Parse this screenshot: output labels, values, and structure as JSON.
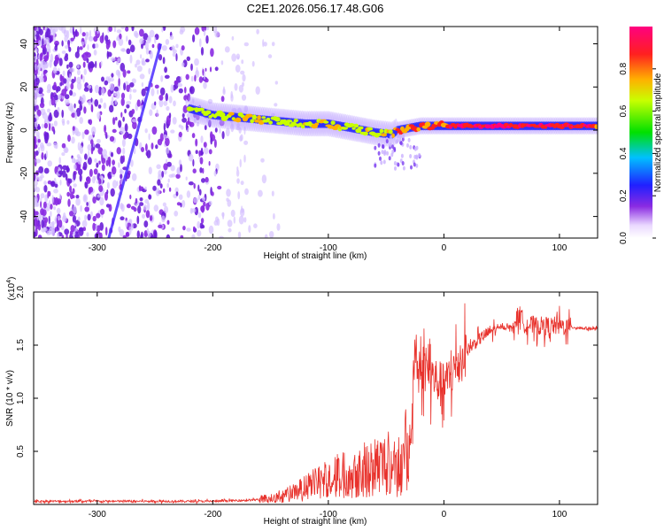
{
  "chart_data": [
    {
      "type": "heatmap",
      "title": "C2E1.2026.056.17.48.G06",
      "xlabel": "Height of straight line (km)",
      "ylabel": "Frequency (Hz)",
      "xlim": [
        -355,
        133
      ],
      "ylim": [
        -50,
        48
      ],
      "xticks": [
        -300,
        -200,
        -100,
        0,
        100
      ],
      "xtick_labels": [
        "-300",
        "-200",
        "-100",
        "0",
        "100"
      ],
      "yticks": [
        -40,
        -20,
        0,
        20,
        40
      ],
      "ytick_labels": [
        "-40",
        "-20",
        "0",
        "20",
        "40"
      ],
      "colorbar": {
        "label": "Normalized spectral amplitude",
        "range": [
          0,
          1
        ],
        "ticks": [
          0.0,
          0.2,
          0.4,
          0.6,
          0.8
        ],
        "tick_labels": [
          "0.0",
          "0.2",
          "0.4",
          "0.6",
          "0.8"
        ]
      },
      "ridge": {
        "x": [
          -220,
          -200,
          -180,
          -160,
          -140,
          -120,
          -100,
          -80,
          -60,
          -45,
          -40,
          -30,
          -20,
          -10,
          0,
          20,
          40,
          60,
          80,
          100,
          120,
          133
        ],
        "y": [
          10,
          7,
          6,
          5,
          4,
          3,
          3,
          1,
          -1,
          -2,
          0,
          1,
          2,
          2,
          2,
          2,
          2,
          2,
          2,
          2,
          2,
          2
        ],
        "amplitude": [
          0.6,
          0.6,
          0.7,
          0.7,
          0.6,
          0.65,
          0.7,
          0.6,
          0.65,
          0.7,
          0.85,
          0.8,
          0.75,
          0.8,
          0.85,
          0.9,
          0.95,
          0.9,
          0.9,
          0.9,
          0.9,
          0.85
        ]
      },
      "streak": {
        "x": [
          -290,
          -245
        ],
        "y": [
          -50,
          40
        ]
      }
    },
    {
      "type": "line",
      "title": "",
      "xlabel": "Height of straight line (km)",
      "ylabel": "SNR (10 * v/v)",
      "scale_label": "(x10",
      "scale_exponent": "4",
      "xlim": [
        -355,
        133
      ],
      "ylim": [
        0,
        2.0
      ],
      "xticks": [
        -300,
        -200,
        -100,
        0,
        100
      ],
      "xtick_labels": [
        "-300",
        "-200",
        "-100",
        "0",
        "100"
      ],
      "yticks": [
        0.5,
        1.0,
        1.5,
        2.0
      ],
      "ytick_labels": [
        "0.5",
        "1.0",
        "1.5",
        "2.0"
      ],
      "series": [
        {
          "name": "SNR",
          "color": "#e8322c",
          "x": [
            -355,
            -300,
            -250,
            -200,
            -170,
            -150,
            -130,
            -110,
            -90,
            -70,
            -50,
            -35,
            -28,
            -25,
            -22,
            -18,
            -10,
            0,
            10,
            20,
            30,
            40,
            50,
            60,
            65,
            70,
            80,
            90,
            100,
            110,
            120,
            133
          ],
          "y": [
            0.03,
            0.03,
            0.03,
            0.03,
            0.04,
            0.05,
            0.1,
            0.18,
            0.25,
            0.3,
            0.35,
            0.35,
            0.7,
            1.5,
            1.2,
            1.3,
            1.2,
            1.1,
            1.3,
            1.45,
            1.55,
            1.63,
            1.67,
            1.67,
            1.8,
            1.7,
            1.68,
            1.68,
            1.68,
            1.67,
            1.66,
            1.65
          ]
        }
      ]
    }
  ]
}
